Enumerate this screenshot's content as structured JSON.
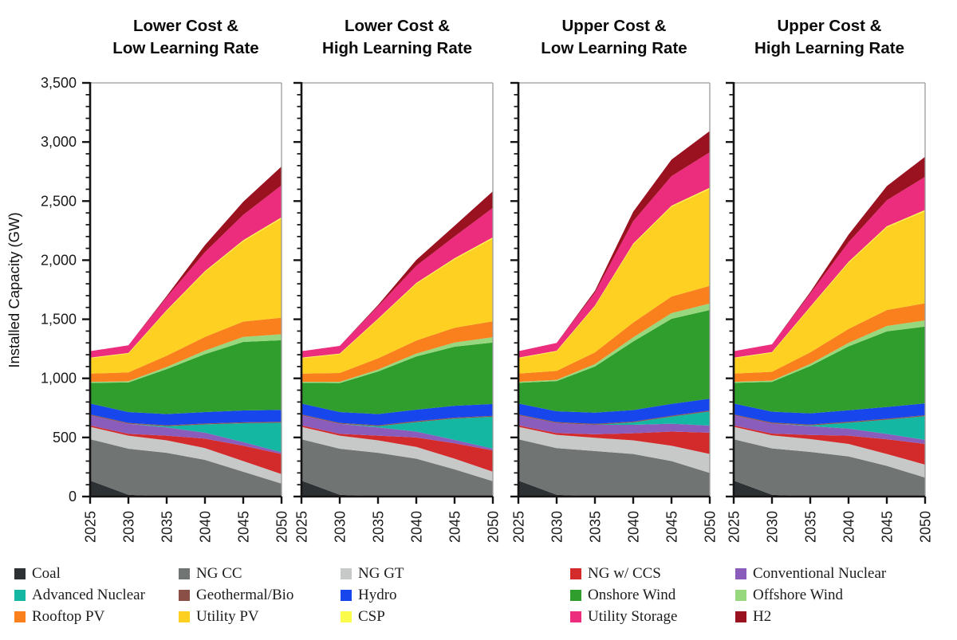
{
  "figure_title": "",
  "y_axis": {
    "label": "Installed Capacity (GW)",
    "tick_values": [
      0,
      500,
      1000,
      1500,
      2000,
      2500,
      3000,
      3500
    ],
    "tick_labels": [
      "0",
      "500",
      "1,000",
      "1,500",
      "2,000",
      "2,500",
      "3,000",
      "3,500"
    ],
    "minor_step": 100,
    "max": 3500
  },
  "x_axis": {
    "tick_labels": [
      "2025",
      "2030",
      "2035",
      "2040",
      "2045",
      "2050"
    ]
  },
  "legend": {
    "columns": [
      [
        {
          "label": "Coal",
          "color": "#2d3133"
        },
        {
          "label": "Advanced Nuclear",
          "color": "#14b8a2"
        },
        {
          "label": "Rooftop PV",
          "color": "#f9801d"
        }
      ],
      [
        {
          "label": "NG CC",
          "color": "#707473"
        },
        {
          "label": "Geothermal/Bio",
          "color": "#8a4f47"
        },
        {
          "label": "Utility PV",
          "color": "#fdd021"
        }
      ],
      [
        {
          "label": "NG GT",
          "color": "#c7c9c8"
        },
        {
          "label": "Hydro",
          "color": "#1747ec"
        },
        {
          "label": "CSP",
          "color": "#fbfb4b"
        }
      ],
      [
        {
          "label": "NG w/ CCS",
          "color": "#d32b2b"
        },
        {
          "label": "Onshore Wind",
          "color": "#2f9e2c"
        },
        {
          "label": "Utility Storage",
          "color": "#ec2c7c"
        }
      ],
      [
        {
          "label": "Conventional Nuclear",
          "color": "#8a5dbd"
        },
        {
          "label": "Offshore Wind",
          "color": "#97d87f"
        },
        {
          "label": "H2",
          "color": "#9a1120"
        }
      ]
    ]
  },
  "chart_data": {
    "type": "area",
    "stacked": true,
    "grid": false,
    "legend_position": "bottom",
    "x": [
      2025,
      2030,
      2035,
      2040,
      2045,
      2050
    ],
    "ylim": [
      0,
      3500
    ],
    "ylabel": "Installed Capacity (GW)",
    "series_order": [
      "Coal",
      "NG CC",
      "NG GT",
      "NG w/ CCS",
      "Conventional Nuclear",
      "Advanced Nuclear",
      "Geothermal/Bio",
      "Hydro",
      "Onshore Wind",
      "Offshore Wind",
      "Rooftop PV",
      "Utility PV",
      "CSP",
      "Utility Storage",
      "H2"
    ],
    "colors": {
      "Coal": "#2d3133",
      "NG CC": "#707473",
      "NG GT": "#c7c9c8",
      "NG w/ CCS": "#d32b2b",
      "Conventional Nuclear": "#8a5dbd",
      "Advanced Nuclear": "#14b8a2",
      "Geothermal/Bio": "#8a4f47",
      "Hydro": "#1747ec",
      "Onshore Wind": "#2f9e2c",
      "Offshore Wind": "#97d87f",
      "Rooftop PV": "#f9801d",
      "Utility PV": "#fdd021",
      "CSP": "#fbfb4b",
      "Utility Storage": "#ec2c7c",
      "H2": "#9a1120"
    },
    "panels": [
      {
        "title_line1": "Lower Cost &",
        "title_line2": "Low Learning Rate",
        "series": {
          "Coal": [
            135,
            15,
            0,
            0,
            0,
            0
          ],
          "NG CC": [
            350,
            390,
            370,
            310,
            210,
            110
          ],
          "NG GT": [
            105,
            110,
            105,
            100,
            90,
            80
          ],
          "NG w/ CCS": [
            12,
            15,
            40,
            80,
            130,
            170
          ],
          "Conventional Nuclear": [
            85,
            85,
            70,
            50,
            30,
            15
          ],
          "Advanced Nuclear": [
            0,
            0,
            10,
            70,
            160,
            250
          ],
          "Geothermal/Bio": [
            8,
            8,
            8,
            8,
            8,
            8
          ],
          "Hydro": [
            92,
            92,
            95,
            97,
            100,
            100
          ],
          "Onshore Wind": [
            175,
            250,
            380,
            490,
            580,
            590
          ],
          "Offshore Wind": [
            8,
            10,
            18,
            30,
            42,
            50
          ],
          "Rooftop PV": [
            70,
            75,
            95,
            115,
            130,
            140
          ],
          "Utility PV": [
            130,
            160,
            380,
            550,
            680,
            840
          ],
          "CSP": [
            5,
            5,
            6,
            8,
            9,
            10
          ],
          "Utility Storage": [
            55,
            65,
            110,
            160,
            215,
            270
          ],
          "H2": [
            0,
            0,
            10,
            60,
            110,
            160
          ]
        }
      },
      {
        "title_line1": "Lower Cost &",
        "title_line2": "High Learning Rate",
        "series": {
          "Coal": [
            135,
            15,
            0,
            0,
            0,
            0
          ],
          "NG CC": [
            350,
            390,
            370,
            320,
            230,
            130
          ],
          "NG GT": [
            105,
            110,
            105,
            100,
            90,
            80
          ],
          "NG w/ CCS": [
            12,
            15,
            40,
            80,
            130,
            180
          ],
          "Conventional Nuclear": [
            85,
            85,
            70,
            50,
            30,
            15
          ],
          "Advanced Nuclear": [
            0,
            0,
            10,
            80,
            180,
            270
          ],
          "Geothermal/Bio": [
            8,
            8,
            8,
            8,
            8,
            8
          ],
          "Hydro": [
            92,
            92,
            95,
            97,
            100,
            100
          ],
          "Onshore Wind": [
            175,
            245,
            360,
            450,
            500,
            520
          ],
          "Offshore Wind": [
            8,
            10,
            16,
            25,
            35,
            45
          ],
          "Rooftop PV": [
            70,
            75,
            95,
            110,
            125,
            135
          ],
          "Utility PV": [
            130,
            160,
            330,
            480,
            580,
            700
          ],
          "CSP": [
            5,
            5,
            6,
            7,
            8,
            10
          ],
          "Utility Storage": [
            55,
            65,
            105,
            145,
            185,
            250
          ],
          "H2": [
            0,
            0,
            10,
            50,
            90,
            140
          ]
        }
      },
      {
        "title_line1": "Upper Cost &",
        "title_line2": "Low Learning Rate",
        "series": {
          "Coal": [
            135,
            15,
            0,
            0,
            0,
            0
          ],
          "NG CC": [
            350,
            395,
            385,
            360,
            300,
            200
          ],
          "NG GT": [
            105,
            112,
            112,
            115,
            130,
            160
          ],
          "NG w/ CCS": [
            12,
            15,
            30,
            60,
            120,
            180
          ],
          "Conventional Nuclear": [
            85,
            85,
            80,
            72,
            66,
            60
          ],
          "Advanced Nuclear": [
            0,
            0,
            0,
            20,
            60,
            120
          ],
          "Geothermal/Bio": [
            8,
            8,
            8,
            8,
            8,
            8
          ],
          "Hydro": [
            92,
            92,
            95,
            97,
            100,
            100
          ],
          "Onshore Wind": [
            175,
            255,
            390,
            580,
            720,
            750
          ],
          "Offshore Wind": [
            8,
            10,
            20,
            35,
            48,
            55
          ],
          "Rooftop PV": [
            70,
            76,
            100,
            125,
            140,
            150
          ],
          "Utility PV": [
            130,
            165,
            390,
            660,
            760,
            820
          ],
          "CSP": [
            5,
            5,
            6,
            8,
            9,
            10
          ],
          "Utility Storage": [
            55,
            67,
            110,
            190,
            250,
            300
          ],
          "H2": [
            0,
            0,
            15,
            80,
            140,
            180
          ]
        }
      },
      {
        "title_line1": "Upper Cost &",
        "title_line2": "High Learning Rate",
        "series": {
          "Coal": [
            135,
            15,
            0,
            0,
            0,
            0
          ],
          "NG CC": [
            350,
            392,
            378,
            340,
            260,
            160
          ],
          "NG GT": [
            105,
            111,
            108,
            105,
            100,
            110
          ],
          "NG w/ CCS": [
            12,
            15,
            35,
            70,
            125,
            175
          ],
          "Conventional Nuclear": [
            85,
            85,
            75,
            60,
            45,
            35
          ],
          "Advanced Nuclear": [
            0,
            0,
            5,
            50,
            120,
            200
          ],
          "Geothermal/Bio": [
            8,
            8,
            8,
            8,
            8,
            8
          ],
          "Hydro": [
            92,
            92,
            95,
            97,
            100,
            100
          ],
          "Onshore Wind": [
            175,
            252,
            400,
            540,
            640,
            650
          ],
          "Offshore Wind": [
            8,
            10,
            18,
            30,
            45,
            52
          ],
          "Rooftop PV": [
            70,
            75,
            98,
            118,
            135,
            145
          ],
          "Utility PV": [
            130,
            162,
            380,
            560,
            700,
            780
          ],
          "CSP": [
            5,
            5,
            6,
            8,
            9,
            10
          ],
          "Utility Storage": [
            55,
            66,
            112,
            165,
            220,
            280
          ],
          "H2": [
            0,
            0,
            12,
            65,
            120,
            170
          ]
        }
      }
    ]
  }
}
